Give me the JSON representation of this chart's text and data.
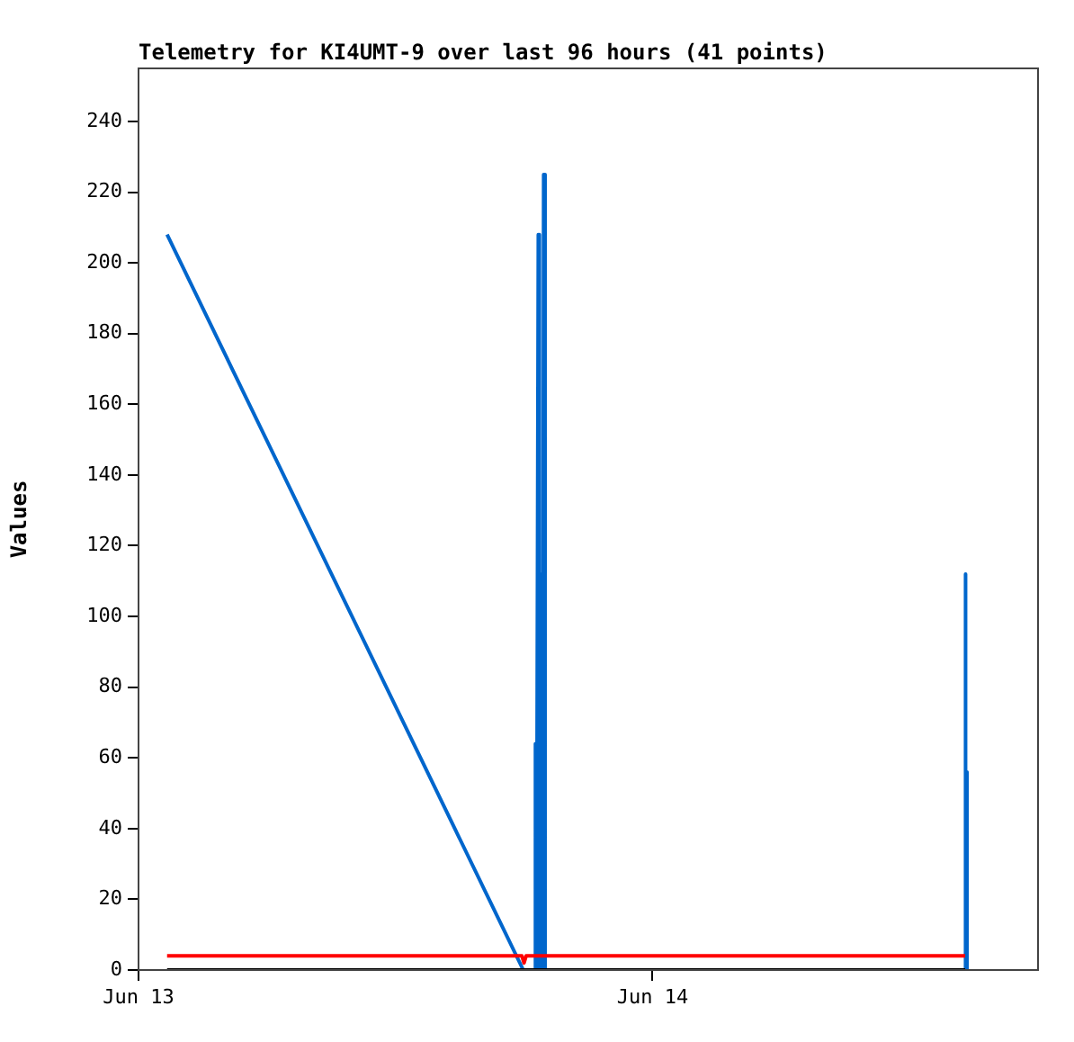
{
  "chart_data": {
    "type": "line",
    "title": "Telemetry for KI4UMT-9 over last 96 hours (41 points)",
    "ylabel": "Values",
    "xlim": [
      "--06-13T00:00",
      "--06-14T18:00"
    ],
    "xticks": [
      {
        "value": "--06-13",
        "label": "Jun 13"
      },
      {
        "value": "--06-14",
        "label": "Jun 14"
      }
    ],
    "ylim": [
      0,
      255
    ],
    "yticks": [
      0,
      20,
      40,
      60,
      80,
      100,
      120,
      140,
      160,
      180,
      200,
      220,
      240
    ],
    "grid": false,
    "legend": false,
    "marker": "none",
    "line_style": "solid",
    "series": [
      {
        "color": "#000000",
        "x": [
          "--06-13T01:20",
          "--06-14T14:36"
        ],
        "values": [
          0,
          0
        ]
      },
      {
        "color": "#ff0000",
        "x": [
          "--06-13T01:20",
          "--06-13T17:54",
          "--06-13T18:00",
          "--06-13T18:06",
          "--06-14T14:36"
        ],
        "values": [
          4,
          4,
          2,
          4,
          4
        ]
      },
      {
        "color": "#0066cc",
        "x": [
          "--06-13T01:20",
          "--06-13T17:58",
          "--06-13T18:30",
          "--06-13T18:32",
          "--06-13T18:35",
          "--06-13T18:40",
          "--06-13T18:43",
          "--06-13T18:48",
          "--06-13T18:52",
          "--06-13T18:55",
          "--06-13T18:59",
          "--06-14T14:36",
          "--06-14T14:36",
          "--06-14T14:38",
          "--06-14T14:41",
          "--06-14T14:41"
        ],
        "values": [
          208,
          0,
          0,
          64,
          0,
          208,
          0,
          112,
          0,
          225,
          0,
          0,
          112,
          0,
          56,
          0
        ]
      }
    ]
  }
}
